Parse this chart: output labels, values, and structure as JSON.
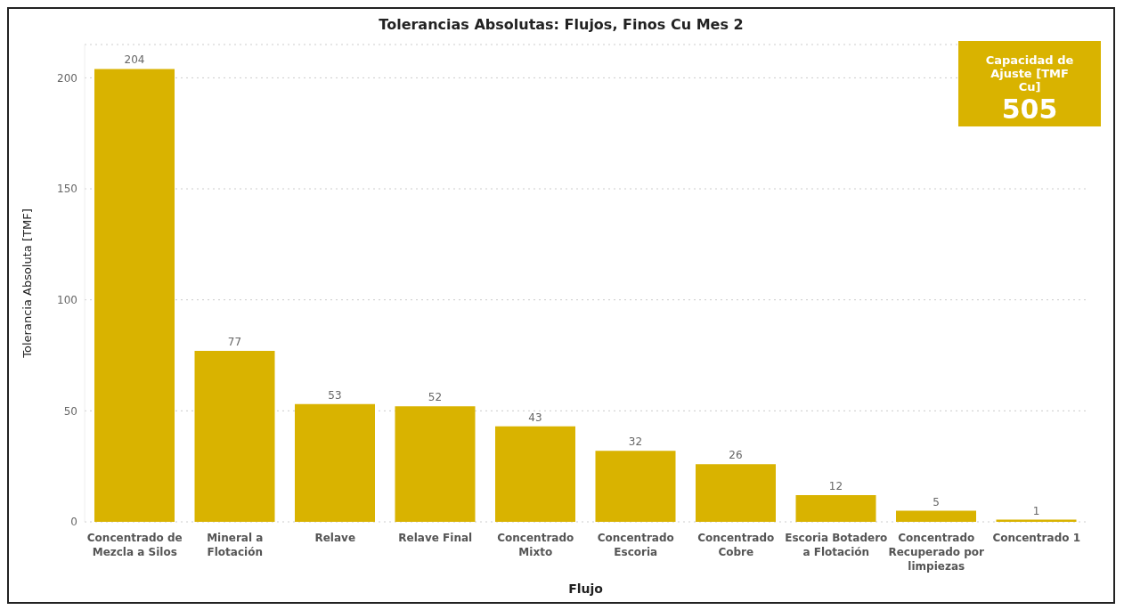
{
  "chart_data": {
    "type": "bar",
    "title": "Tolerancias Absolutas: Flujos, Finos Cu Mes 2",
    "xlabel": "Flujo",
    "ylabel": "Tolerancia Absoluta [TMF]",
    "categories": [
      "Concentrado de Mezcla a Silos",
      "Mineral a Flotación",
      "Relave",
      "Relave Final",
      "Concentrado Mixto",
      "Concentrado Escoria",
      "Concentrado Cobre",
      "Escoria Botadero a Flotación",
      "Concentrado Recuperado por limpiezas",
      "Concentrado 1"
    ],
    "values": [
      204,
      77,
      53,
      52,
      43,
      32,
      26,
      12,
      5,
      1
    ],
    "color": "#d9b300",
    "ylim": [
      0,
      215
    ],
    "yticks": [
      0,
      50,
      100,
      150,
      200
    ],
    "grid": "y",
    "data_labels": true,
    "annotations": [
      "Capacidad de Ajuste [TMF Cu]",
      "505"
    ]
  }
}
